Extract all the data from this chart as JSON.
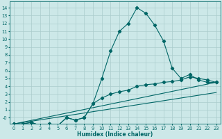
{
  "title": "",
  "xlabel": "Humidex (Indice chaleur)",
  "bg_color": "#cce8e8",
  "grid_color": "#aacccc",
  "line_color": "#006666",
  "xlim": [
    -0.5,
    23.5
  ],
  "ylim": [
    -0.8,
    14.8
  ],
  "xticks": [
    0,
    1,
    2,
    3,
    4,
    5,
    6,
    7,
    8,
    9,
    10,
    11,
    12,
    13,
    14,
    15,
    16,
    17,
    18,
    19,
    20,
    21,
    22,
    23
  ],
  "yticks": [
    0,
    1,
    2,
    3,
    4,
    5,
    6,
    7,
    8,
    9,
    10,
    11,
    12,
    13,
    14
  ],
  "ytick_labels": [
    "-0",
    "1",
    "2",
    "3",
    "4",
    "5",
    "6",
    "7",
    "8",
    "9",
    "10",
    "11",
    "12",
    "13",
    "14"
  ],
  "curve1_x": [
    0,
    1,
    2,
    3,
    4,
    5,
    6,
    7,
    8,
    9,
    10,
    11,
    12,
    13,
    14,
    15,
    16,
    17,
    18,
    19,
    20,
    21,
    22,
    23
  ],
  "curve1_y": [
    -0.8,
    -0.8,
    -0.6,
    -1.0,
    -0.8,
    -1.0,
    -0.0,
    -0.3,
    -0.0,
    1.8,
    5.0,
    8.5,
    11.0,
    12.0,
    14.0,
    13.3,
    11.8,
    9.8,
    6.3,
    5.0,
    5.5,
    4.8,
    4.5,
    4.5
  ],
  "curve2_x": [
    0,
    1,
    2,
    3,
    4,
    5,
    6,
    7,
    8,
    9,
    10,
    11,
    12,
    13,
    14,
    15,
    16,
    17,
    18,
    19,
    20,
    21,
    22,
    23
  ],
  "curve2_y": [
    -0.8,
    -0.8,
    -0.6,
    -1.0,
    -0.8,
    -1.0,
    -0.0,
    -0.3,
    -0.0,
    1.8,
    2.5,
    3.0,
    3.3,
    3.5,
    4.0,
    4.2,
    4.3,
    4.5,
    4.6,
    4.8,
    5.2,
    5.0,
    4.8,
    4.5
  ],
  "curve3_x": [
    0,
    23
  ],
  "curve3_y": [
    -0.8,
    4.5
  ],
  "curve4_x": [
    0,
    23
  ],
  "curve4_y": [
    -0.8,
    3.2
  ],
  "markersize": 2.2,
  "linewidth": 0.8,
  "xlabel_fontsize": 5.5,
  "tick_fontsize": 4.8
}
